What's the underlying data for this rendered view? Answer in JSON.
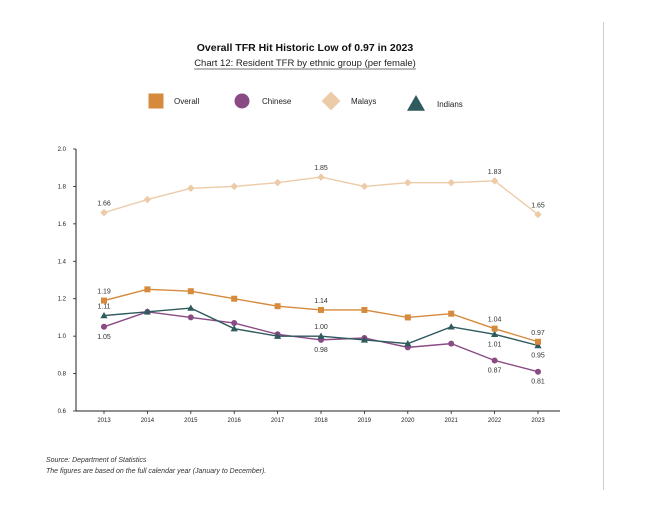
{
  "chart_data": {
    "type": "line",
    "title": "Overall TFR Hit Historic Low of 0.97 in 2023",
    "subtitle": "Chart 12: Resident TFR by ethnic group (per female)",
    "x": [
      "2013",
      "2014",
      "2015",
      "2016",
      "2017",
      "2018",
      "2019",
      "2020",
      "2021",
      "2022",
      "2023"
    ],
    "ylim": [
      0.6,
      2.0
    ],
    "yticks": [
      "0.6",
      "0.8",
      "1.0",
      "1.2",
      "1.4",
      "1.6",
      "1.8",
      "2.0"
    ],
    "xlabel": "",
    "ylabel": "",
    "grid": false,
    "legend_position": "top",
    "series": [
      {
        "name": "Overall",
        "marker": "square",
        "color": "#d68a3c",
        "values": [
          1.19,
          1.25,
          1.24,
          1.2,
          1.16,
          1.14,
          1.14,
          1.1,
          1.12,
          1.04,
          0.97
        ]
      },
      {
        "name": "Chinese",
        "marker": "circle",
        "color": "#8a4a84",
        "values": [
          1.05,
          1.13,
          1.1,
          1.07,
          1.01,
          0.98,
          0.99,
          0.94,
          0.96,
          0.87,
          0.81
        ]
      },
      {
        "name": "Malays",
        "marker": "diamond",
        "color": "#eccba8",
        "values": [
          1.66,
          1.73,
          1.79,
          1.8,
          1.82,
          1.85,
          1.8,
          1.82,
          1.82,
          1.83,
          1.65
        ]
      },
      {
        "name": "Indians",
        "marker": "triangle",
        "color": "#2f5a5e",
        "values": [
          1.11,
          1.13,
          1.15,
          1.04,
          1.0,
          1.0,
          0.98,
          0.96,
          1.05,
          1.01,
          0.95
        ]
      }
    ],
    "annotations": [
      {
        "text": "1.66",
        "series": "Malays",
        "index": 0,
        "pos": "above"
      },
      {
        "text": "1.85",
        "series": "Malays",
        "index": 5,
        "pos": "above"
      },
      {
        "text": "1.83",
        "series": "Malays",
        "index": 9,
        "pos": "above"
      },
      {
        "text": "1.65",
        "series": "Malays",
        "index": 10,
        "pos": "above"
      },
      {
        "text": "1.19",
        "series": "Overall",
        "index": 0,
        "pos": "above"
      },
      {
        "text": "1.11",
        "series": "Indians",
        "index": 0,
        "pos": "above"
      },
      {
        "text": "1.05",
        "series": "Chinese",
        "index": 0,
        "pos": "below"
      },
      {
        "text": "1.14",
        "series": "Overall",
        "index": 5,
        "pos": "above"
      },
      {
        "text": "1.00",
        "series": "Indians",
        "index": 5,
        "pos": "above"
      },
      {
        "text": "0.98",
        "series": "Chinese",
        "index": 5,
        "pos": "below"
      },
      {
        "text": "1.04",
        "series": "Overall",
        "index": 9,
        "pos": "above"
      },
      {
        "text": "1.01",
        "series": "Indians",
        "index": 9,
        "pos": "below"
      },
      {
        "text": "0.87",
        "series": "Chinese",
        "index": 9,
        "pos": "below"
      },
      {
        "text": "0.97",
        "series": "Overall",
        "index": 10,
        "pos": "above"
      },
      {
        "text": "0.95",
        "series": "Indians",
        "index": 10,
        "pos": "below"
      },
      {
        "text": "0.81",
        "series": "Chinese",
        "index": 10,
        "pos": "below"
      }
    ],
    "source_lines": [
      "Source: Department of Statistics",
      "The figures are based on the full calendar year (January to December)."
    ]
  }
}
